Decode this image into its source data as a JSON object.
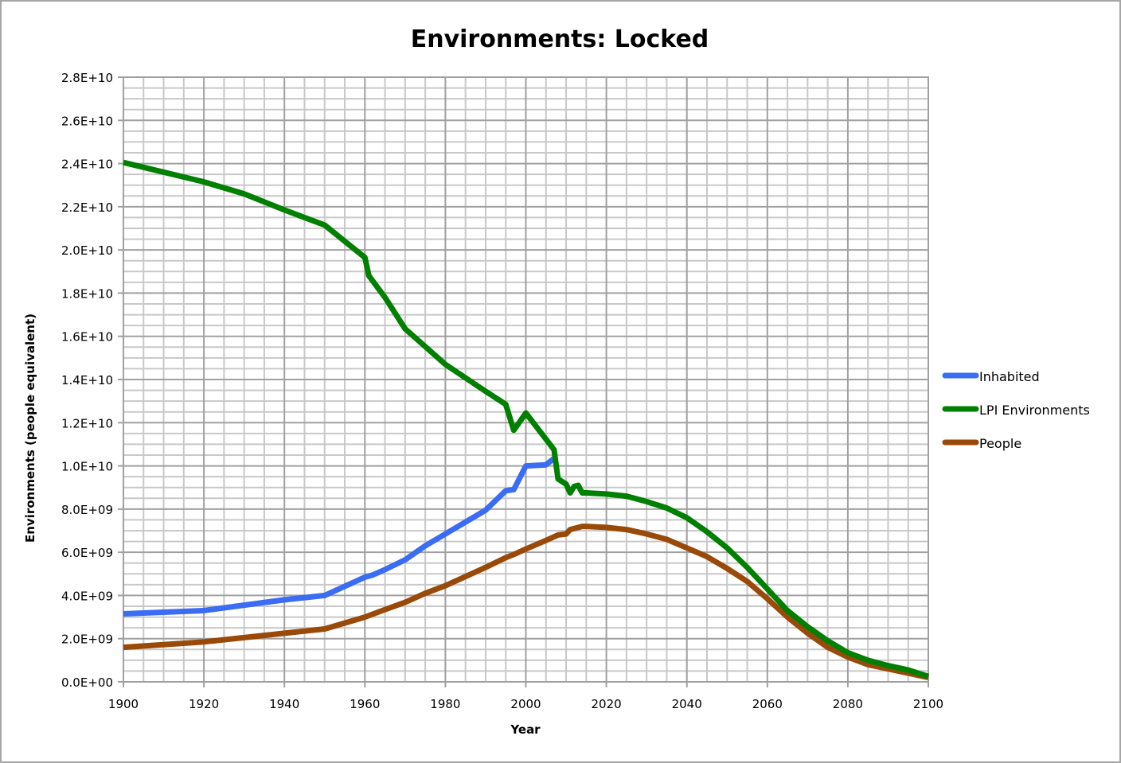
{
  "chart_data": {
    "type": "line",
    "title": "Environments: Locked",
    "xlabel": "Year",
    "ylabel": "Environments (people equivalent)",
    "xlim": [
      1900,
      2100
    ],
    "ylim": [
      0,
      28000000000
    ],
    "x_ticks": [
      1900,
      1920,
      1940,
      1960,
      1980,
      2000,
      2020,
      2040,
      2060,
      2080,
      2100
    ],
    "x_tick_labels": [
      "1900",
      "1920",
      "1940",
      "1960",
      "1980",
      "2000",
      "2020",
      "2040",
      "2060",
      "2080",
      "2100"
    ],
    "y_ticks": [
      0,
      2000000000,
      4000000000,
      6000000000,
      8000000000,
      10000000000,
      12000000000,
      14000000000,
      16000000000,
      18000000000,
      20000000000,
      22000000000,
      24000000000,
      26000000000,
      28000000000
    ],
    "y_tick_labels": [
      "0.0E+00",
      "2.0E+09",
      "4.0E+09",
      "6.0E+09",
      "8.0E+09",
      "1.0E+10",
      "1.2E+10",
      "1.4E+10",
      "1.6E+10",
      "1.8E+10",
      "2.0E+10",
      "2.2E+10",
      "2.4E+10",
      "2.6E+10",
      "2.8E+10"
    ],
    "grid": true,
    "minor_grid": {
      "x_step": 5,
      "y_step": 500000000
    },
    "legend_position": "right",
    "series": [
      {
        "name": "Inhabited",
        "color": "#3a6cf4",
        "x": [
          1900,
          1920,
          1930,
          1940,
          1950,
          1960,
          1962,
          1965,
          1970,
          1975,
          1980,
          1990,
          1995,
          1997,
          2000,
          2005,
          2007
        ],
        "values": [
          3150000000,
          3300000000,
          3550000000,
          3800000000,
          4000000000,
          4850000000,
          4950000000,
          5200000000,
          5650000000,
          6300000000,
          6850000000,
          7950000000,
          8850000000,
          8900000000,
          10000000000,
          10050000000,
          10350000000
        ]
      },
      {
        "name": "LPI Environments",
        "color": "#008000",
        "x": [
          1900,
          1920,
          1930,
          1940,
          1950,
          1960,
          1961,
          1965,
          1970,
          1980,
          1990,
          1995,
          1997,
          2000,
          2007,
          2008,
          2010,
          2011,
          2012,
          2013,
          2014,
          2015,
          2020,
          2025,
          2030,
          2035,
          2040,
          2045,
          2050,
          2055,
          2060,
          2065,
          2070,
          2075,
          2080,
          2085,
          2090,
          2095,
          2100
        ],
        "values": [
          24050000000,
          23150000000,
          22600000000,
          21850000000,
          21150000000,
          19650000000,
          18800000000,
          17800000000,
          16350000000,
          14700000000,
          13450000000,
          12850000000,
          11650000000,
          12450000000,
          10750000000,
          9400000000,
          9150000000,
          8750000000,
          9050000000,
          9100000000,
          8750000000,
          8750000000,
          8700000000,
          8600000000,
          8350000000,
          8050000000,
          7600000000,
          6950000000,
          6200000000,
          5300000000,
          4300000000,
          3300000000,
          2550000000,
          1900000000,
          1350000000,
          1000000000,
          750000000,
          550000000,
          250000000
        ]
      },
      {
        "name": "People",
        "color": "#9a4a08",
        "x": [
          1900,
          1920,
          1930,
          1940,
          1950,
          1960,
          1965,
          1970,
          1975,
          1980,
          1990,
          1995,
          1997,
          2000,
          2005,
          2008,
          2010,
          2011,
          2014,
          2015,
          2020,
          2025,
          2030,
          2035,
          2040,
          2045,
          2050,
          2055,
          2060,
          2065,
          2070,
          2075,
          2080,
          2085,
          2090,
          2095,
          2100
        ],
        "values": [
          1600000000,
          1850000000,
          2050000000,
          2250000000,
          2450000000,
          3000000000,
          3350000000,
          3680000000,
          4100000000,
          4450000000,
          5300000000,
          5750000000,
          5900000000,
          6150000000,
          6550000000,
          6800000000,
          6850000000,
          7050000000,
          7200000000,
          7200000000,
          7150000000,
          7050000000,
          6850000000,
          6600000000,
          6200000000,
          5800000000,
          5250000000,
          4650000000,
          3850000000,
          3000000000,
          2250000000,
          1600000000,
          1150000000,
          800000000,
          600000000,
          400000000,
          200000000
        ]
      }
    ]
  }
}
